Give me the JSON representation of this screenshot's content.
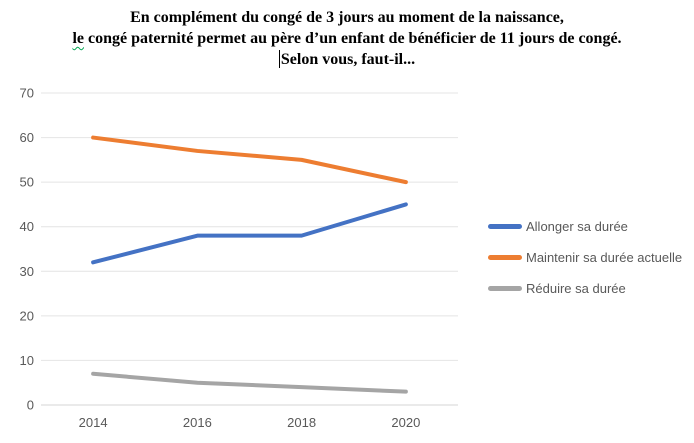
{
  "title": {
    "line1": "En complément du congé de 3 jours au moment de la naissance,",
    "line2_lead": "le",
    "line2_rest": " congé paternité permet au père d’un enfant de bénéficier de 11 jours de congé.",
    "line3": "Selon vous, faut-il..."
  },
  "chart_data": {
    "type": "line",
    "title": "En complément du congé de 3 jours au moment de la naissance, le congé paternité permet au père d’un enfant de bénéficier de 11 jours de congé. Selon vous, faut-il...",
    "categories": [
      "2014",
      "2016",
      "2018",
      "2020"
    ],
    "series": [
      {
        "name": "Allonger sa durée",
        "values": [
          32,
          38,
          38,
          45
        ],
        "color": "#4472C4"
      },
      {
        "name": "Maintenir sa durée actuelle",
        "values": [
          60,
          57,
          55,
          50
        ],
        "color": "#ED7D31"
      },
      {
        "name": "Réduire sa durée",
        "values": [
          7,
          5,
          4,
          3
        ],
        "color": "#A5A5A5"
      }
    ],
    "xlabel": "",
    "ylabel": "",
    "ylim": [
      0,
      70
    ],
    "ytick": 10,
    "grid": true,
    "legend_position": "right",
    "colors": {
      "gridline": "#E4E4E4",
      "axis_line": "#D6D6D6",
      "tick_label": "#595959"
    }
  }
}
